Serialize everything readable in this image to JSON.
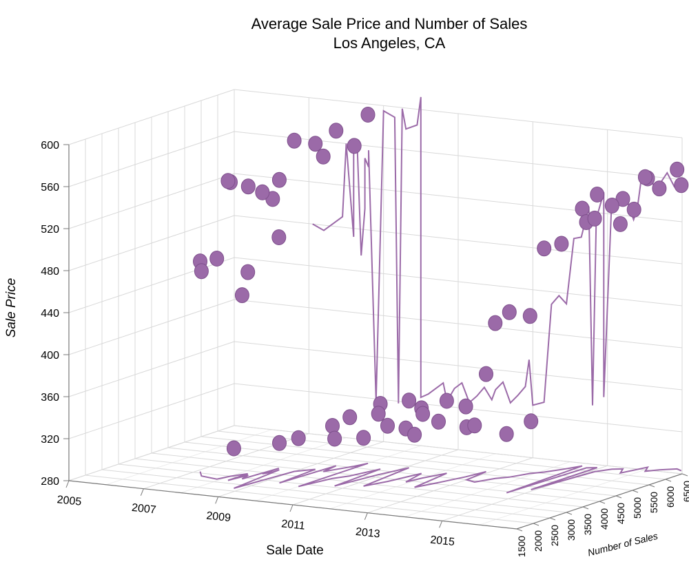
{
  "chart_data": {
    "type": "scatter",
    "title": "Average Sale Price and Number of Sales",
    "subtitle": "Los Angeles, CA",
    "xlabel": "Sale Date",
    "ylabel": "Sale Price",
    "zlabel": "Number of Sales",
    "xlim": [
      2005,
      2017
    ],
    "ylim": [
      280,
      600
    ],
    "zlim": [
      1500,
      6500
    ],
    "x_ticks": [
      "2005",
      "2007",
      "2009",
      "2011",
      "2013",
      "2015"
    ],
    "y_ticks": [
      "280",
      "320",
      "360",
      "400",
      "440",
      "480",
      "520",
      "560",
      "600"
    ],
    "z_ticks": [
      "1500",
      "2000",
      "2500",
      "3000",
      "3500",
      "4000",
      "4500",
      "5000",
      "5500",
      "6000",
      "6500"
    ],
    "grid": true,
    "colors": {
      "series": "#9b6aa8",
      "grid": "#d8d8d8",
      "axis": "#777777"
    },
    "series": [
      {
        "values": [
          [
            2007.1,
            3100,
            480
          ],
          [
            2007.4,
            2800,
            475
          ],
          [
            2007.9,
            2700,
            490
          ],
          [
            2008.2,
            3300,
            472
          ],
          [
            2008.4,
            2900,
            455
          ],
          [
            2008.5,
            3900,
            500
          ],
          [
            2008.0,
            3000,
            560
          ],
          [
            2008.3,
            3200,
            555
          ],
          [
            2008.5,
            3400,
            548
          ],
          [
            2008.6,
            3600,
            540
          ],
          [
            2008.2,
            2700,
            565
          ],
          [
            2008.6,
            3800,
            556
          ],
          [
            2009.0,
            3800,
            595
          ],
          [
            2009.3,
            4100,
            590
          ],
          [
            2009.5,
            4500,
            599
          ],
          [
            2009.6,
            4000,
            580
          ],
          [
            2009.9,
            4600,
            585
          ],
          [
            2010.0,
            4900,
            612
          ],
          [
            2008.8,
            2200,
            318
          ],
          [
            2009.4,
            2900,
            318
          ],
          [
            2010.0,
            2800,
            326
          ],
          [
            2010.2,
            3600,
            330
          ],
          [
            2010.4,
            3900,
            336
          ],
          [
            2010.6,
            4600,
            342
          ],
          [
            2010.7,
            3100,
            325
          ],
          [
            2010.9,
            4200,
            338
          ],
          [
            2011.1,
            4900,
            344
          ],
          [
            2011.3,
            3300,
            326
          ],
          [
            2011.5,
            3800,
            333
          ],
          [
            2011.7,
            4600,
            342
          ],
          [
            2011.9,
            3900,
            331
          ],
          [
            2012.0,
            4300,
            341
          ],
          [
            2012.2,
            4800,
            349
          ],
          [
            2012.4,
            3600,
            330
          ],
          [
            2012.6,
            4100,
            338
          ],
          [
            2012.8,
            4700,
            347
          ],
          [
            2012.9,
            5200,
            373
          ],
          [
            2013.0,
            4500,
            330
          ],
          [
            2013.3,
            4400,
            334
          ],
          [
            2013.5,
            4800,
            428
          ],
          [
            2013.7,
            5000,
            437
          ],
          [
            2013.9,
            5400,
            430
          ],
          [
            2014.1,
            5600,
            493
          ],
          [
            2014.3,
            5900,
            495
          ],
          [
            2014.5,
            6300,
            525
          ],
          [
            2014.7,
            6200,
            514
          ],
          [
            2014.9,
            6300,
            540
          ],
          [
            2015.1,
            6000,
            521
          ],
          [
            2015.3,
            6300,
            531
          ],
          [
            2015.5,
            6400,
            537
          ],
          [
            2015.7,
            6100,
            517
          ],
          [
            2015.8,
            6400,
            528
          ],
          [
            2015.9,
            6700,
            555
          ],
          [
            2016.1,
            6400,
            560
          ],
          [
            2016.3,
            6600,
            548
          ],
          [
            2016.6,
            6800,
            565
          ],
          [
            2016.8,
            6700,
            552
          ],
          [
            2014.6,
            3900,
            336
          ],
          [
            2014.9,
            4300,
            345
          ]
        ]
      }
    ]
  }
}
